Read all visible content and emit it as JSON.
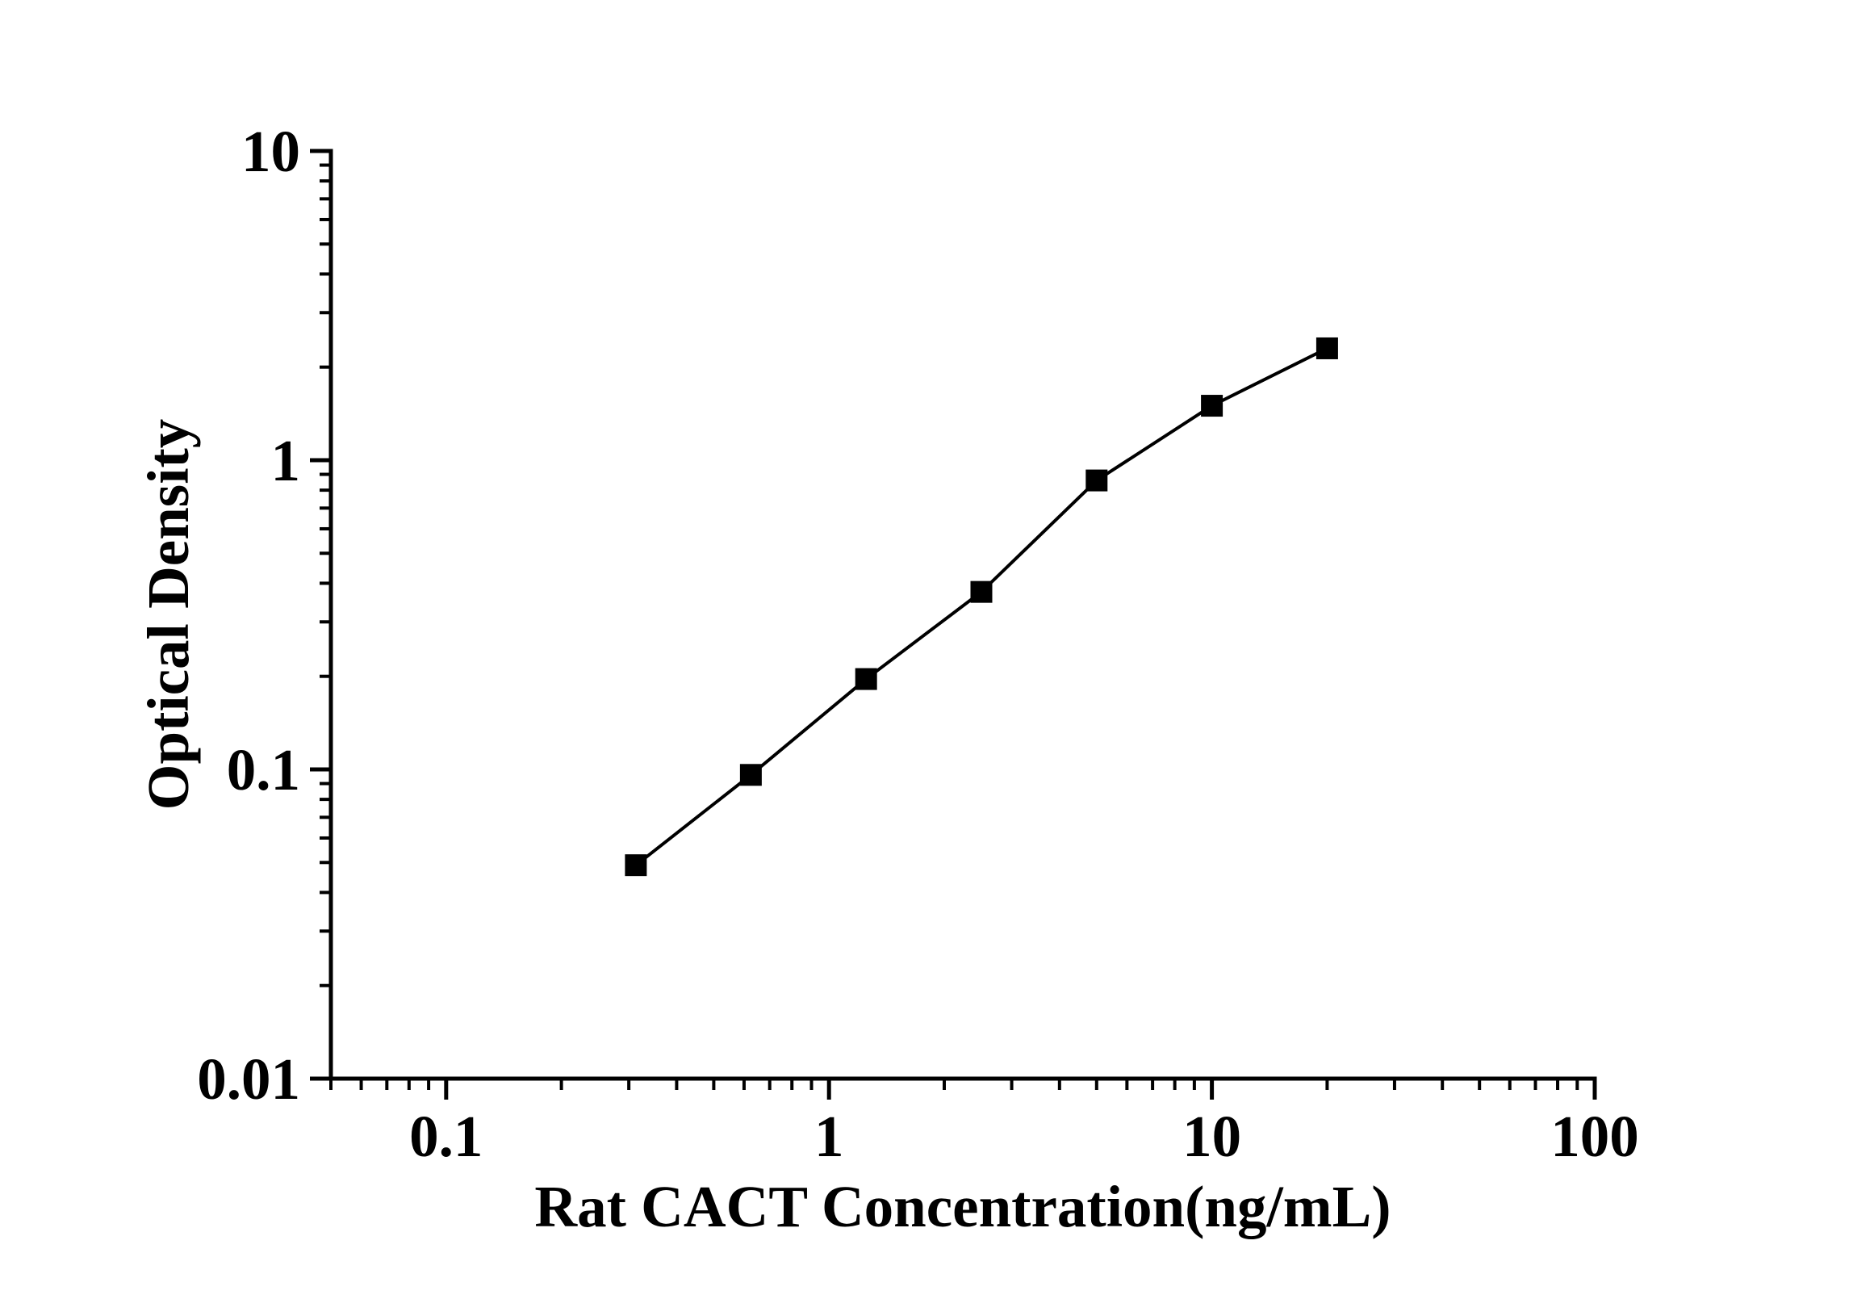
{
  "figure": {
    "background_color": "#ffffff",
    "ink_color": "#000000"
  },
  "chart_data": {
    "type": "line",
    "title": "",
    "xlabel": "Rat CACT Concentration(ng/mL)",
    "ylabel": "Optical Density",
    "x_scale": "log",
    "y_scale": "log",
    "xlim": [
      0.05,
      100
    ],
    "ylim": [
      0.01,
      10
    ],
    "x_major_ticks": [
      0.1,
      1,
      10,
      100
    ],
    "x_tick_labels": [
      "0.1",
      "1",
      "10",
      "100"
    ],
    "y_major_ticks": [
      0.01,
      0.1,
      1,
      10
    ],
    "y_tick_labels": [
      "0.01",
      "0.1",
      "1",
      "10"
    ],
    "grid": false,
    "legend": "none",
    "series": [
      {
        "name": "standard-curve",
        "marker": "filled-square",
        "line_style": "solid",
        "color": "#000000",
        "x": [
          0.313,
          0.625,
          1.25,
          2.5,
          5,
          10,
          20
        ],
        "y": [
          0.049,
          0.096,
          0.196,
          0.375,
          0.86,
          1.5,
          2.3
        ]
      }
    ]
  }
}
